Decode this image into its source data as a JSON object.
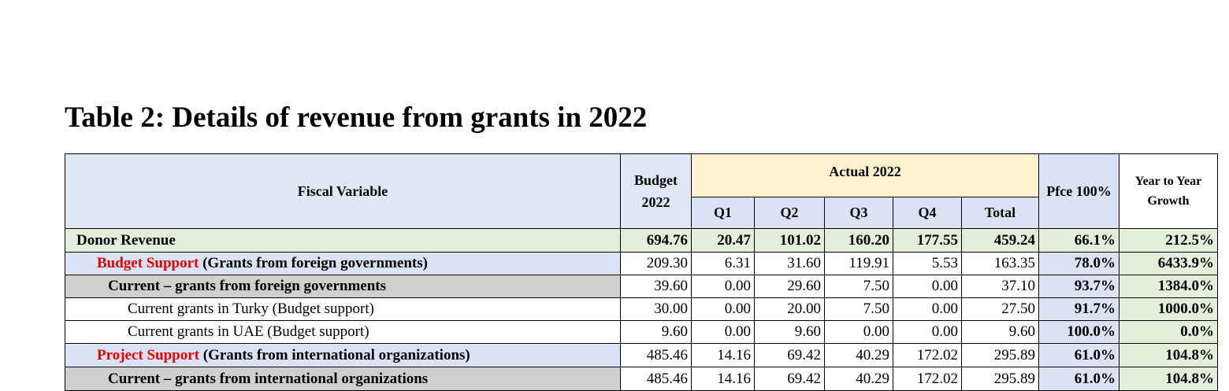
{
  "title": "Table 2: Details of revenue from grants in 2022",
  "header": {
    "fiscal_variable": "Fiscal Variable",
    "budget": "Budget 2022",
    "actual": "Actual 2022",
    "quarters": [
      "Q1",
      "Q2",
      "Q3",
      "Q4"
    ],
    "total": "Total",
    "pfce": "Pfce 100%",
    "yoy": "Year to Year Growth"
  },
  "rows": [
    {
      "label": "Donor Revenue",
      "values": [
        "694.76",
        "20.47",
        "101.02",
        "160.20",
        "177.55",
        "459.24",
        "66.1%",
        "212.5%"
      ]
    },
    {
      "highlight": "Budget Support",
      "label": "(Grants from foreign governments)",
      "values": [
        "209.30",
        "6.31",
        "31.60",
        "119.91",
        "5.53",
        "163.35",
        "78.0%",
        "6433.9%"
      ]
    },
    {
      "label": "Current – grants from foreign governments",
      "values": [
        "39.60",
        "0.00",
        "29.60",
        "7.50",
        "0.00",
        "37.10",
        "93.7%",
        "1384.0%"
      ]
    },
    {
      "label": "Current grants in Turky (Budget support)",
      "values": [
        "30.00",
        "0.00",
        "20.00",
        "7.50",
        "0.00",
        "27.50",
        "91.7%",
        "1000.0%"
      ]
    },
    {
      "label": "Current grants in UAE (Budget support)",
      "values": [
        "9.60",
        "0.00",
        "9.60",
        "0.00",
        "0.00",
        "9.60",
        "100.0%",
        "0.0%"
      ]
    },
    {
      "highlight": "Project Support",
      "label": "(Grants from international organizations)",
      "values": [
        "485.46",
        "14.16",
        "69.42",
        "40.29",
        "172.02",
        "295.89",
        "61.0%",
        "104.8%"
      ]
    },
    {
      "label": "Current – grants from international organizations",
      "values": [
        "485.46",
        "14.16",
        "69.42",
        "40.29",
        "172.02",
        "295.89",
        "61.0%",
        "104.8%"
      ]
    }
  ]
}
